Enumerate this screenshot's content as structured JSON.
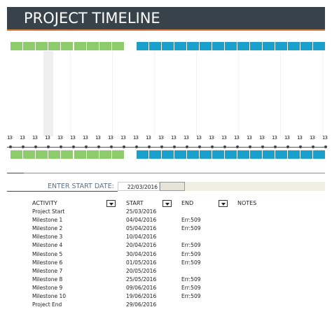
{
  "header": {
    "title": "PROJECT TIMELINE"
  },
  "timeline": {
    "tick_labels": [
      "13",
      "13",
      "13",
      "13",
      "13",
      "13",
      "13",
      "13",
      "13",
      "13",
      "13",
      "13",
      "13",
      "13",
      "13",
      "13",
      "13",
      "13",
      "13",
      "13",
      "13",
      "13",
      "13",
      "13",
      "13",
      "13"
    ]
  },
  "start_date": {
    "label": "ENTER START DATE:",
    "value": "22/03/2016"
  },
  "table": {
    "columns": [
      "ACTIVITY",
      "START",
      "END",
      "NOTES"
    ],
    "rows": [
      {
        "activity": "Project Start",
        "start": "25/03/2016"
      },
      {
        "activity": "Milestone 1",
        "start": "04/04/2016",
        "end": "Err:509"
      },
      {
        "activity": "Milestone 2",
        "start": "05/04/2016",
        "end": "Err:509"
      },
      {
        "activity": "Milestone 3",
        "start": "10/04/2016"
      },
      {
        "activity": "Milestone 4",
        "start": "20/04/2016",
        "end": "Err:509"
      },
      {
        "activity": "Milestone 5",
        "start": "30/04/2016",
        "end": "Err:509"
      },
      {
        "activity": "Milestone 6",
        "start": "01/05/2016",
        "end": "Err:509"
      },
      {
        "activity": "Milestone 7",
        "start": "20/05/2016"
      },
      {
        "activity": "Milestone 8",
        "start": "25/05/2016",
        "end": "Err:509"
      },
      {
        "activity": "Milestone 9",
        "start": "09/06/2016",
        "end": "Err:509"
      },
      {
        "activity": "Milestone 10",
        "start": "19/06/2016",
        "end": "Err:509"
      },
      {
        "activity": "Project End",
        "start": "29/06/2016"
      }
    ]
  }
}
